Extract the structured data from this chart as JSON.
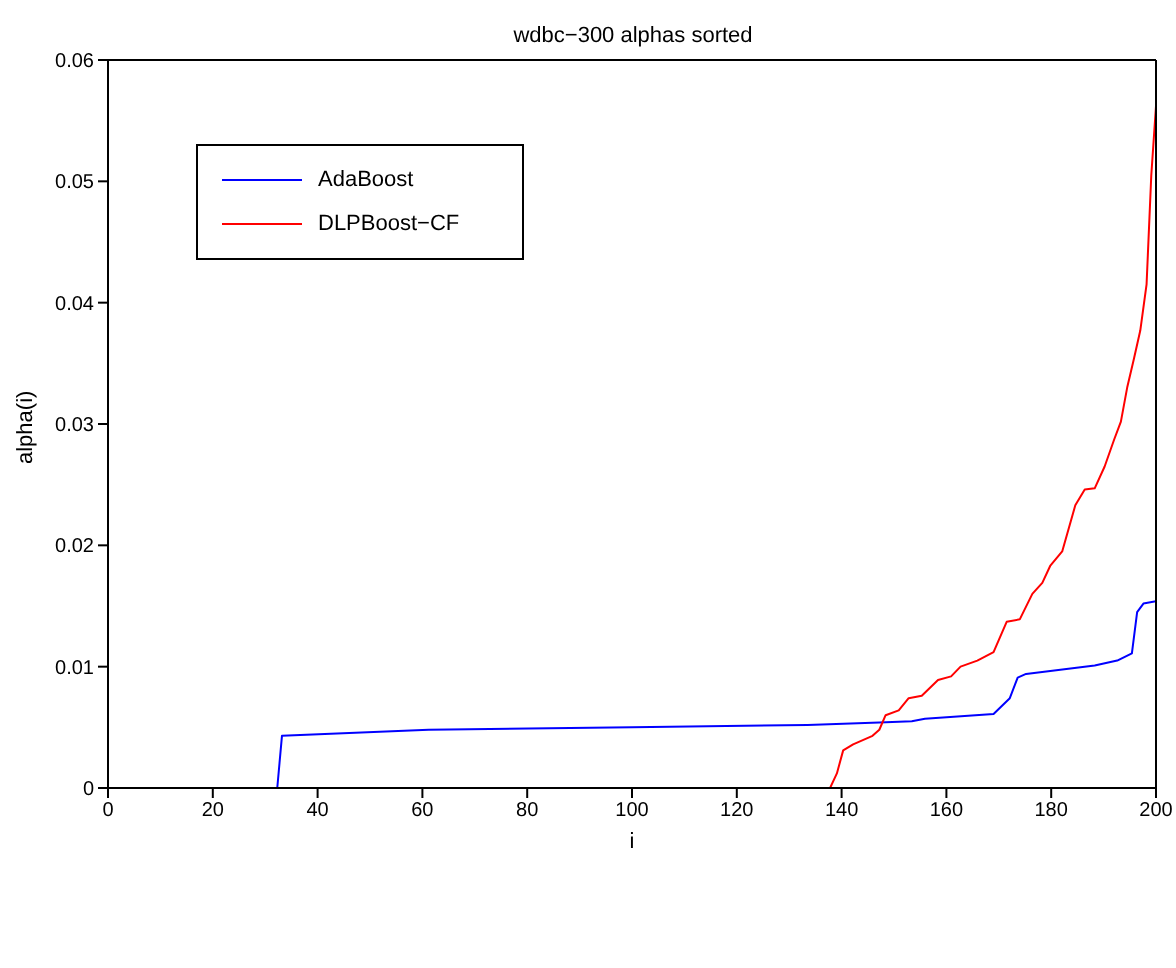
{
  "chart_data": {
    "type": "line",
    "title": "wdbc−300 alphas sorted",
    "xlabel": "i",
    "ylabel": "alpha(i)",
    "xlim": [
      0,
      200
    ],
    "xticks": [
      0,
      20,
      40,
      60,
      80,
      100,
      120,
      140,
      160,
      180,
      200
    ],
    "ylim": [
      0,
      0.06
    ],
    "yticks": [
      0,
      0.01,
      0.02,
      0.03,
      0.04,
      0.05,
      0.06
    ],
    "legend": "top left",
    "grid": false,
    "marker": "none",
    "line_style": "solid",
    "series": [
      {
        "name": "AdaBoost",
        "color": "#0000ff",
        "x": [
          0,
          32.3,
          33.2,
          61.2,
          100,
          133.5,
          147.2,
          153.4,
          155.9,
          169,
          172.1,
          173.6,
          175.2,
          188.3,
          192.6,
          195.4,
          196.4,
          197.6,
          200
        ],
        "values": [
          0,
          0,
          0.0043,
          0.0048,
          0.005,
          0.0052,
          0.0054,
          0.0055,
          0.0057,
          0.0061,
          0.0074,
          0.0091,
          0.0094,
          0.0101,
          0.0105,
          0.0111,
          0.0145,
          0.0152,
          0.0154
        ]
      },
      {
        "name": "DLPBoost−CF",
        "color": "#ff0000",
        "x": [
          0,
          137.8,
          139.1,
          140.3,
          142.2,
          145.9,
          147.2,
          148.4,
          150.9,
          152.8,
          155.3,
          158.4,
          160.9,
          162.7,
          165.9,
          169,
          171.5,
          174,
          176.4,
          178.3,
          179.8,
          182.1,
          184.6,
          186.4,
          188.3,
          190.2,
          192,
          193.3,
          194.5,
          195.8,
          197,
          198.2,
          199.1,
          200
        ],
        "values": [
          0,
          0,
          0.0012,
          0.0031,
          0.0036,
          0.0043,
          0.0048,
          0.006,
          0.0064,
          0.0074,
          0.0076,
          0.0089,
          0.0092,
          0.01,
          0.0105,
          0.0112,
          0.0137,
          0.0139,
          0.016,
          0.0169,
          0.0183,
          0.0195,
          0.0233,
          0.0246,
          0.0247,
          0.0265,
          0.0287,
          0.0302,
          0.033,
          0.0354,
          0.0377,
          0.0415,
          0.0505,
          0.0562
        ]
      }
    ]
  }
}
